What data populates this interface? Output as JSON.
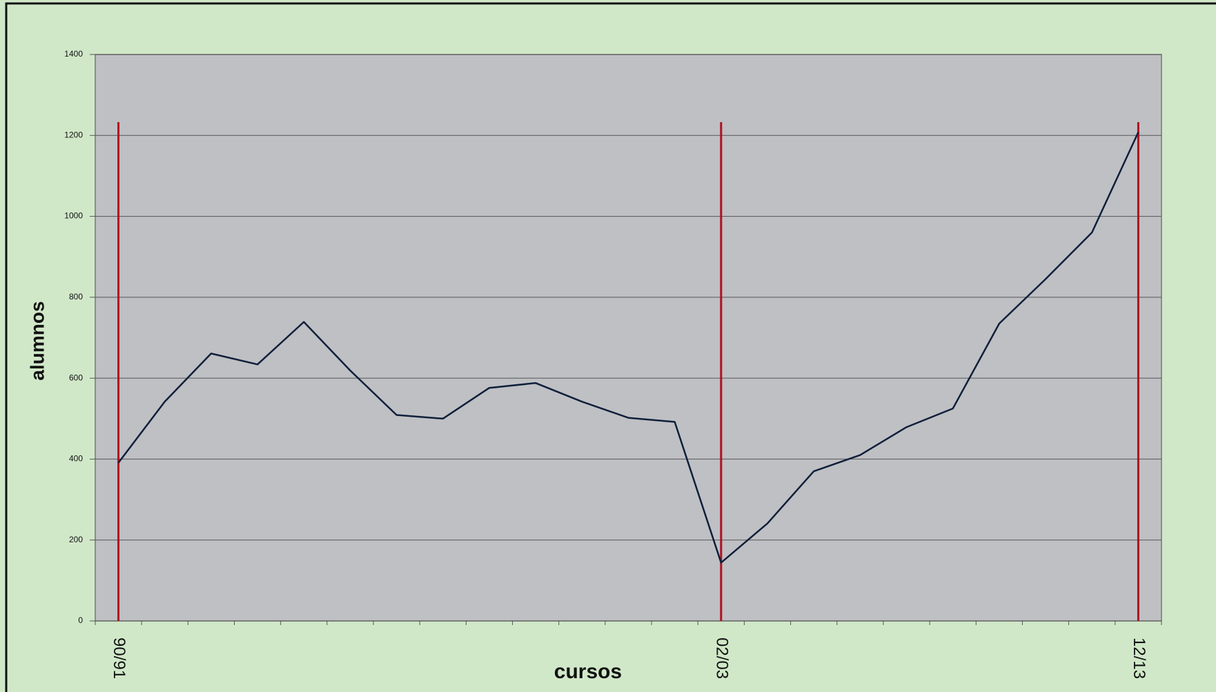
{
  "chart_data": {
    "type": "line",
    "x_label": "cursos",
    "y_label": "alumnos",
    "categories": [
      "90/91",
      null,
      null,
      null,
      null,
      null,
      null,
      null,
      null,
      null,
      null,
      null,
      null,
      "02/03",
      null,
      null,
      null,
      null,
      null,
      null,
      null,
      null,
      "12/13"
    ],
    "series": [
      {
        "name": "alumnos",
        "color": "#0f1f3a",
        "values": [
          391,
          542,
          661,
          634,
          739,
          619,
          509,
          500,
          576,
          588,
          542,
          502,
          492,
          144,
          241,
          370,
          410,
          479,
          525,
          735,
          845,
          960,
          1208
        ]
      }
    ],
    "marker_color": "#b01020",
    "ylim": [
      0,
      1400
    ],
    "yticks": [
      0,
      200,
      400,
      600,
      800,
      1000,
      1200,
      1400
    ],
    "grid": true
  }
}
